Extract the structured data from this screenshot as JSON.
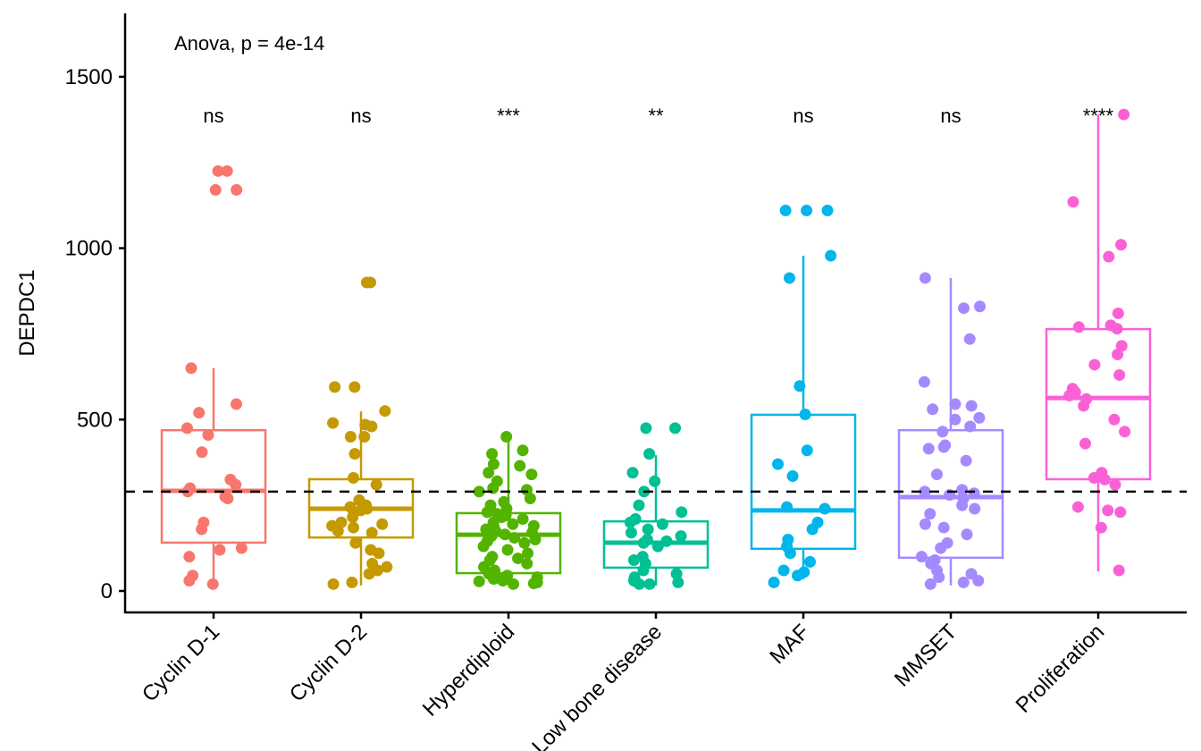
{
  "chart_data": {
    "type": "box",
    "title": "",
    "ylabel": "DEPDC1",
    "xlabel": "",
    "ylim": [
      -63,
      1685
    ],
    "yticks": [
      0,
      500,
      1000,
      1500
    ],
    "grid": false,
    "legend": "none",
    "annotation": "Anova, p = 4e-14",
    "reference_line": 290,
    "categories": [
      "Cyclin D-1",
      "Cyclin D-2",
      "Hyperdiploid",
      "Low bone disease",
      "MAF",
      "MMSET",
      "Proliferation"
    ],
    "significance": [
      "ns",
      "ns",
      "***",
      "**",
      "ns",
      "ns",
      "****"
    ],
    "colors": [
      "#F8766D",
      "#C49A00",
      "#53B400",
      "#00C094",
      "#00B6EB",
      "#A58AFF",
      "#FB61D7"
    ],
    "boxes": [
      {
        "q1": 141,
        "median": 292,
        "q3": 469,
        "whisker_low": 18,
        "whisker_high": 650
      },
      {
        "q1": 156,
        "median": 240,
        "q3": 326,
        "whisker_low": 16,
        "whisker_high": 524
      },
      {
        "q1": 52,
        "median": 164,
        "q3": 227,
        "whisker_low": 16,
        "whisker_high": 446
      },
      {
        "q1": 68,
        "median": 141,
        "q3": 203,
        "whisker_low": 16,
        "whisker_high": 396
      },
      {
        "q1": 123,
        "median": 235,
        "q3": 514,
        "whisker_low": 34,
        "whisker_high": 978
      },
      {
        "q1": 97,
        "median": 274,
        "q3": 469,
        "whisker_low": 16,
        "whisker_high": 913
      },
      {
        "q1": 326,
        "median": 563,
        "q3": 764,
        "whisker_low": 57,
        "whisker_high": 1390
      }
    ],
    "points": [
      [
        1225,
        1225,
        1170,
        1170,
        650,
        545,
        520,
        475,
        455,
        405,
        325,
        310,
        300,
        270,
        275,
        290,
        200,
        180,
        120,
        125,
        100,
        45,
        30,
        20
      ],
      [
        900,
        900,
        595,
        595,
        525,
        490,
        485,
        480,
        450,
        450,
        400,
        330,
        310,
        265,
        250,
        240,
        245,
        230,
        235,
        215,
        200,
        195,
        190,
        185,
        175,
        170,
        140,
        120,
        110,
        80,
        70,
        60,
        50,
        25,
        20
      ],
      [
        450,
        410,
        400,
        370,
        365,
        345,
        340,
        320,
        300,
        295,
        290,
        270,
        260,
        250,
        240,
        230,
        225,
        220,
        215,
        210,
        200,
        195,
        190,
        185,
        180,
        175,
        170,
        165,
        160,
        155,
        150,
        145,
        140,
        130,
        120,
        110,
        100,
        95,
        90,
        80,
        70,
        60,
        55,
        50,
        45,
        40,
        38,
        35,
        30,
        28,
        25,
        22,
        20
      ],
      [
        475,
        475,
        400,
        345,
        320,
        290,
        250,
        230,
        210,
        200,
        195,
        180,
        170,
        160,
        150,
        145,
        140,
        130,
        100,
        90,
        80,
        60,
        50,
        40,
        30,
        25,
        20,
        20
      ],
      [
        1110,
        1110,
        1110,
        978,
        913,
        598,
        515,
        410,
        370,
        335,
        245,
        240,
        200,
        180,
        150,
        130,
        110,
        85,
        60,
        55,
        45,
        25
      ],
      [
        913,
        830,
        825,
        735,
        610,
        545,
        540,
        530,
        505,
        500,
        480,
        465,
        425,
        420,
        415,
        380,
        340,
        295,
        290,
        285,
        280,
        270,
        250,
        240,
        225,
        195,
        185,
        165,
        140,
        125,
        100,
        90,
        80,
        60,
        50,
        40,
        30,
        25,
        20
      ],
      [
        1390,
        1135,
        1010,
        975,
        810,
        775,
        770,
        765,
        715,
        690,
        660,
        630,
        590,
        580,
        570,
        560,
        540,
        500,
        465,
        430,
        345,
        330,
        325,
        310,
        245,
        235,
        230,
        185,
        60
      ]
    ]
  }
}
